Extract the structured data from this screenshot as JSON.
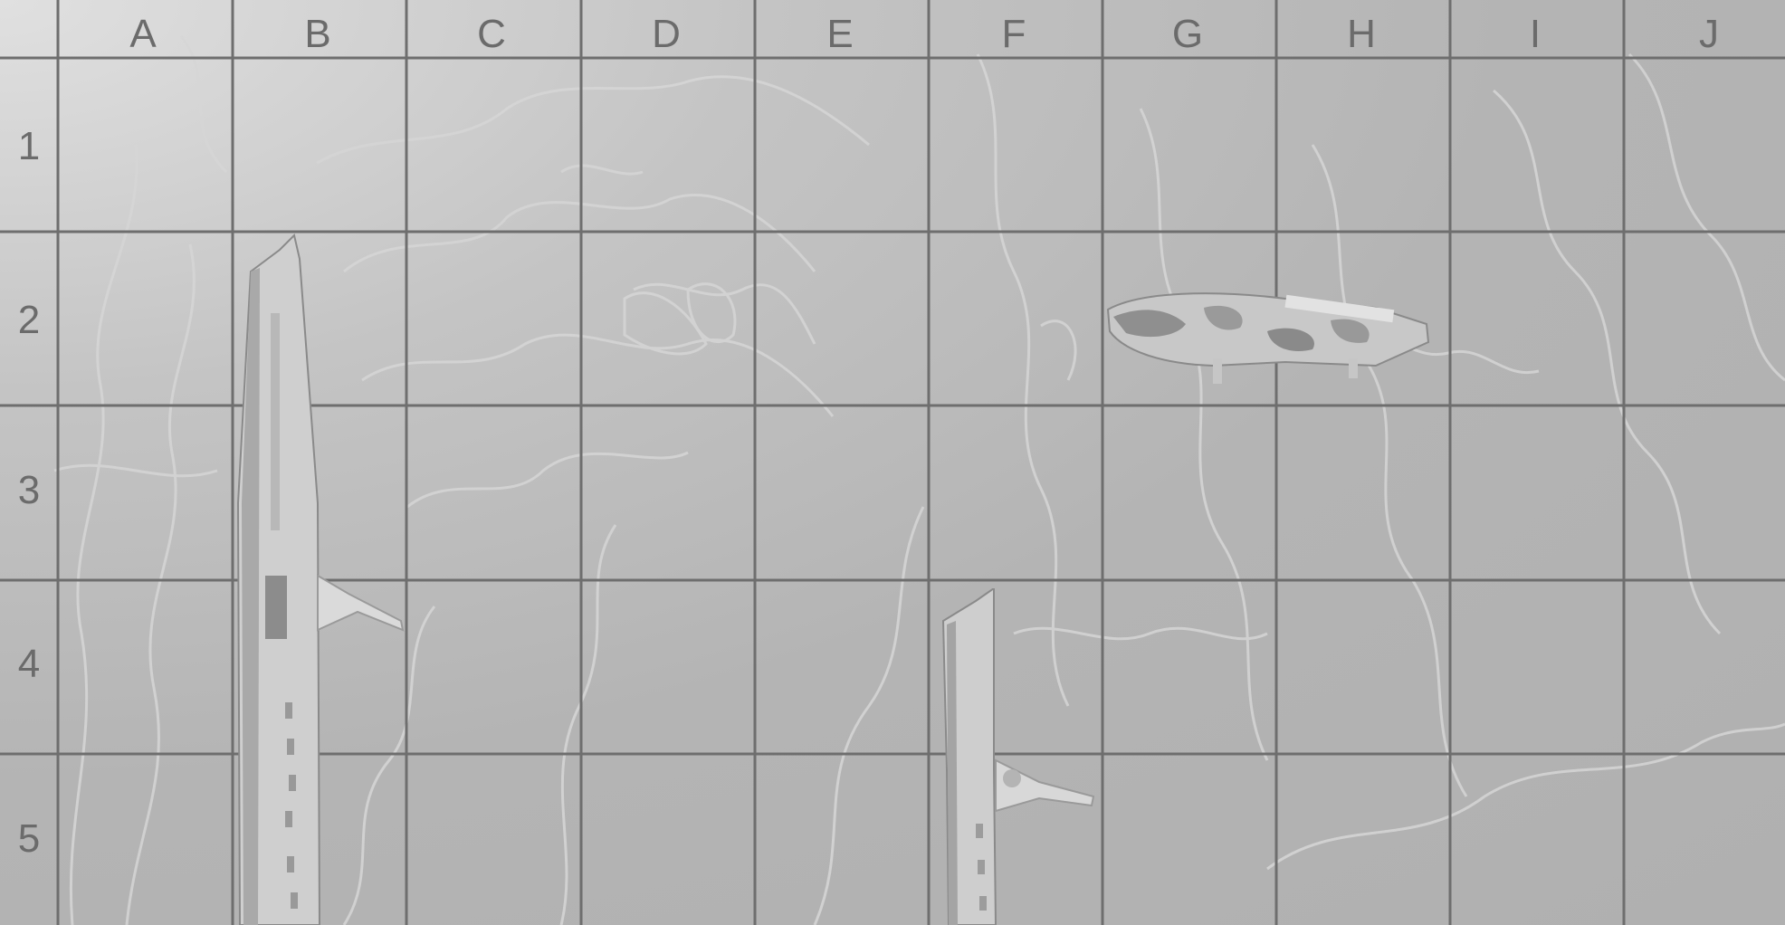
{
  "grid": {
    "columns": [
      "A",
      "B",
      "C",
      "D",
      "E",
      "F",
      "G",
      "H",
      "I",
      "J"
    ],
    "rows": [
      "1",
      "2",
      "3",
      "4",
      "5"
    ]
  },
  "ships": [
    {
      "name": "vertical-ship-long",
      "orientation": "vertical",
      "start": "B2",
      "end": "B5"
    },
    {
      "name": "horizontal-camo-ship",
      "orientation": "horizontal",
      "start": "G2",
      "end": "H2"
    },
    {
      "name": "vertical-ship-short",
      "orientation": "vertical",
      "start": "F4",
      "end": "F5"
    }
  ],
  "colors": {
    "grid_line": "#6e6e6e",
    "label": "#6b6b6b",
    "contour": "#d4d4d4"
  }
}
